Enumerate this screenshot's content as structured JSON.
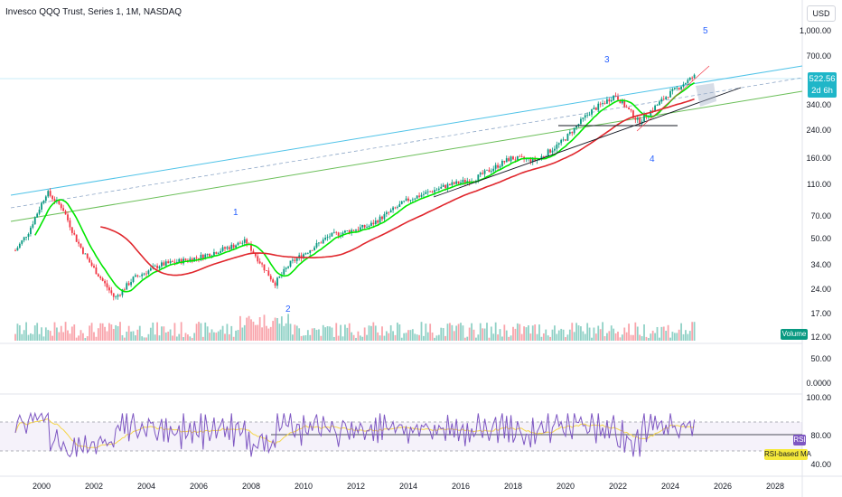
{
  "header": {
    "title": "Invesco QQQ Trust, Series 1, 1M, NASDAQ",
    "currency": "USD"
  },
  "price_badge": {
    "price": "522.56",
    "countdown": "2d 6h"
  },
  "volume_label": "Volume",
  "rsi_label": "RSI",
  "rsi_ma_label": "RSI-based MA",
  "colors": {
    "up_candle": "#089981",
    "down_candle": "#f23645",
    "sma_fast": "#00e600",
    "sma_slow": "#e0262c",
    "channel_upper": "#4fc3e8",
    "channel_lower": "#6bbf59",
    "rsi_line": "#7e57c2",
    "rsi_ma": "#f5d64a"
  },
  "chart_data": {
    "type": "candlestick",
    "title": "Invesco QQQ Trust, Series 1, 1M, NASDAQ",
    "price_scale": "log",
    "price_axis_ticks": [
      "1,000.00",
      "700.00",
      "522.56",
      "340.00",
      "240.00",
      "160.00",
      "110.00",
      "70.00",
      "50.00",
      "34.00",
      "24.00",
      "17.00",
      "12.00"
    ],
    "volume_axis_ticks": [
      "50.00",
      "0.0000"
    ],
    "rsi_axis_ticks": [
      "100.00",
      "80.00",
      "40.00"
    ],
    "x_axis_ticks": [
      "2000",
      "2002",
      "2004",
      "2006",
      "2008",
      "2010",
      "2012",
      "2014",
      "2016",
      "2018",
      "2020",
      "2022",
      "2024",
      "2026",
      "2028"
    ],
    "last_price": 522.56,
    "price_path_approx": [
      {
        "year": 1999.0,
        "close": 42
      },
      {
        "year": 1999.5,
        "close": 55
      },
      {
        "year": 2000.2,
        "close": 98
      },
      {
        "year": 2000.8,
        "close": 78
      },
      {
        "year": 2001.3,
        "close": 50
      },
      {
        "year": 2001.8,
        "close": 36
      },
      {
        "year": 2002.8,
        "close": 21
      },
      {
        "year": 2003.5,
        "close": 28
      },
      {
        "year": 2004.5,
        "close": 34
      },
      {
        "year": 2006.0,
        "close": 38
      },
      {
        "year": 2007.8,
        "close": 48
      },
      {
        "year": 2008.9,
        "close": 26
      },
      {
        "year": 2009.5,
        "close": 35
      },
      {
        "year": 2011.0,
        "close": 52
      },
      {
        "year": 2012.5,
        "close": 60
      },
      {
        "year": 2014.0,
        "close": 88
      },
      {
        "year": 2015.5,
        "close": 108
      },
      {
        "year": 2016.5,
        "close": 118
      },
      {
        "year": 2017.9,
        "close": 160
      },
      {
        "year": 2018.9,
        "close": 155
      },
      {
        "year": 2019.9,
        "close": 205
      },
      {
        "year": 2020.9,
        "close": 310
      },
      {
        "year": 2021.9,
        "close": 400
      },
      {
        "year": 2022.8,
        "close": 270
      },
      {
        "year": 2023.9,
        "close": 400
      },
      {
        "year": 2024.9,
        "close": 522.56
      }
    ],
    "wave_labels": [
      "1",
      "2",
      "3",
      "4",
      "5"
    ],
    "legend": [
      "Volume",
      "RSI",
      "RSI-based MA"
    ]
  }
}
